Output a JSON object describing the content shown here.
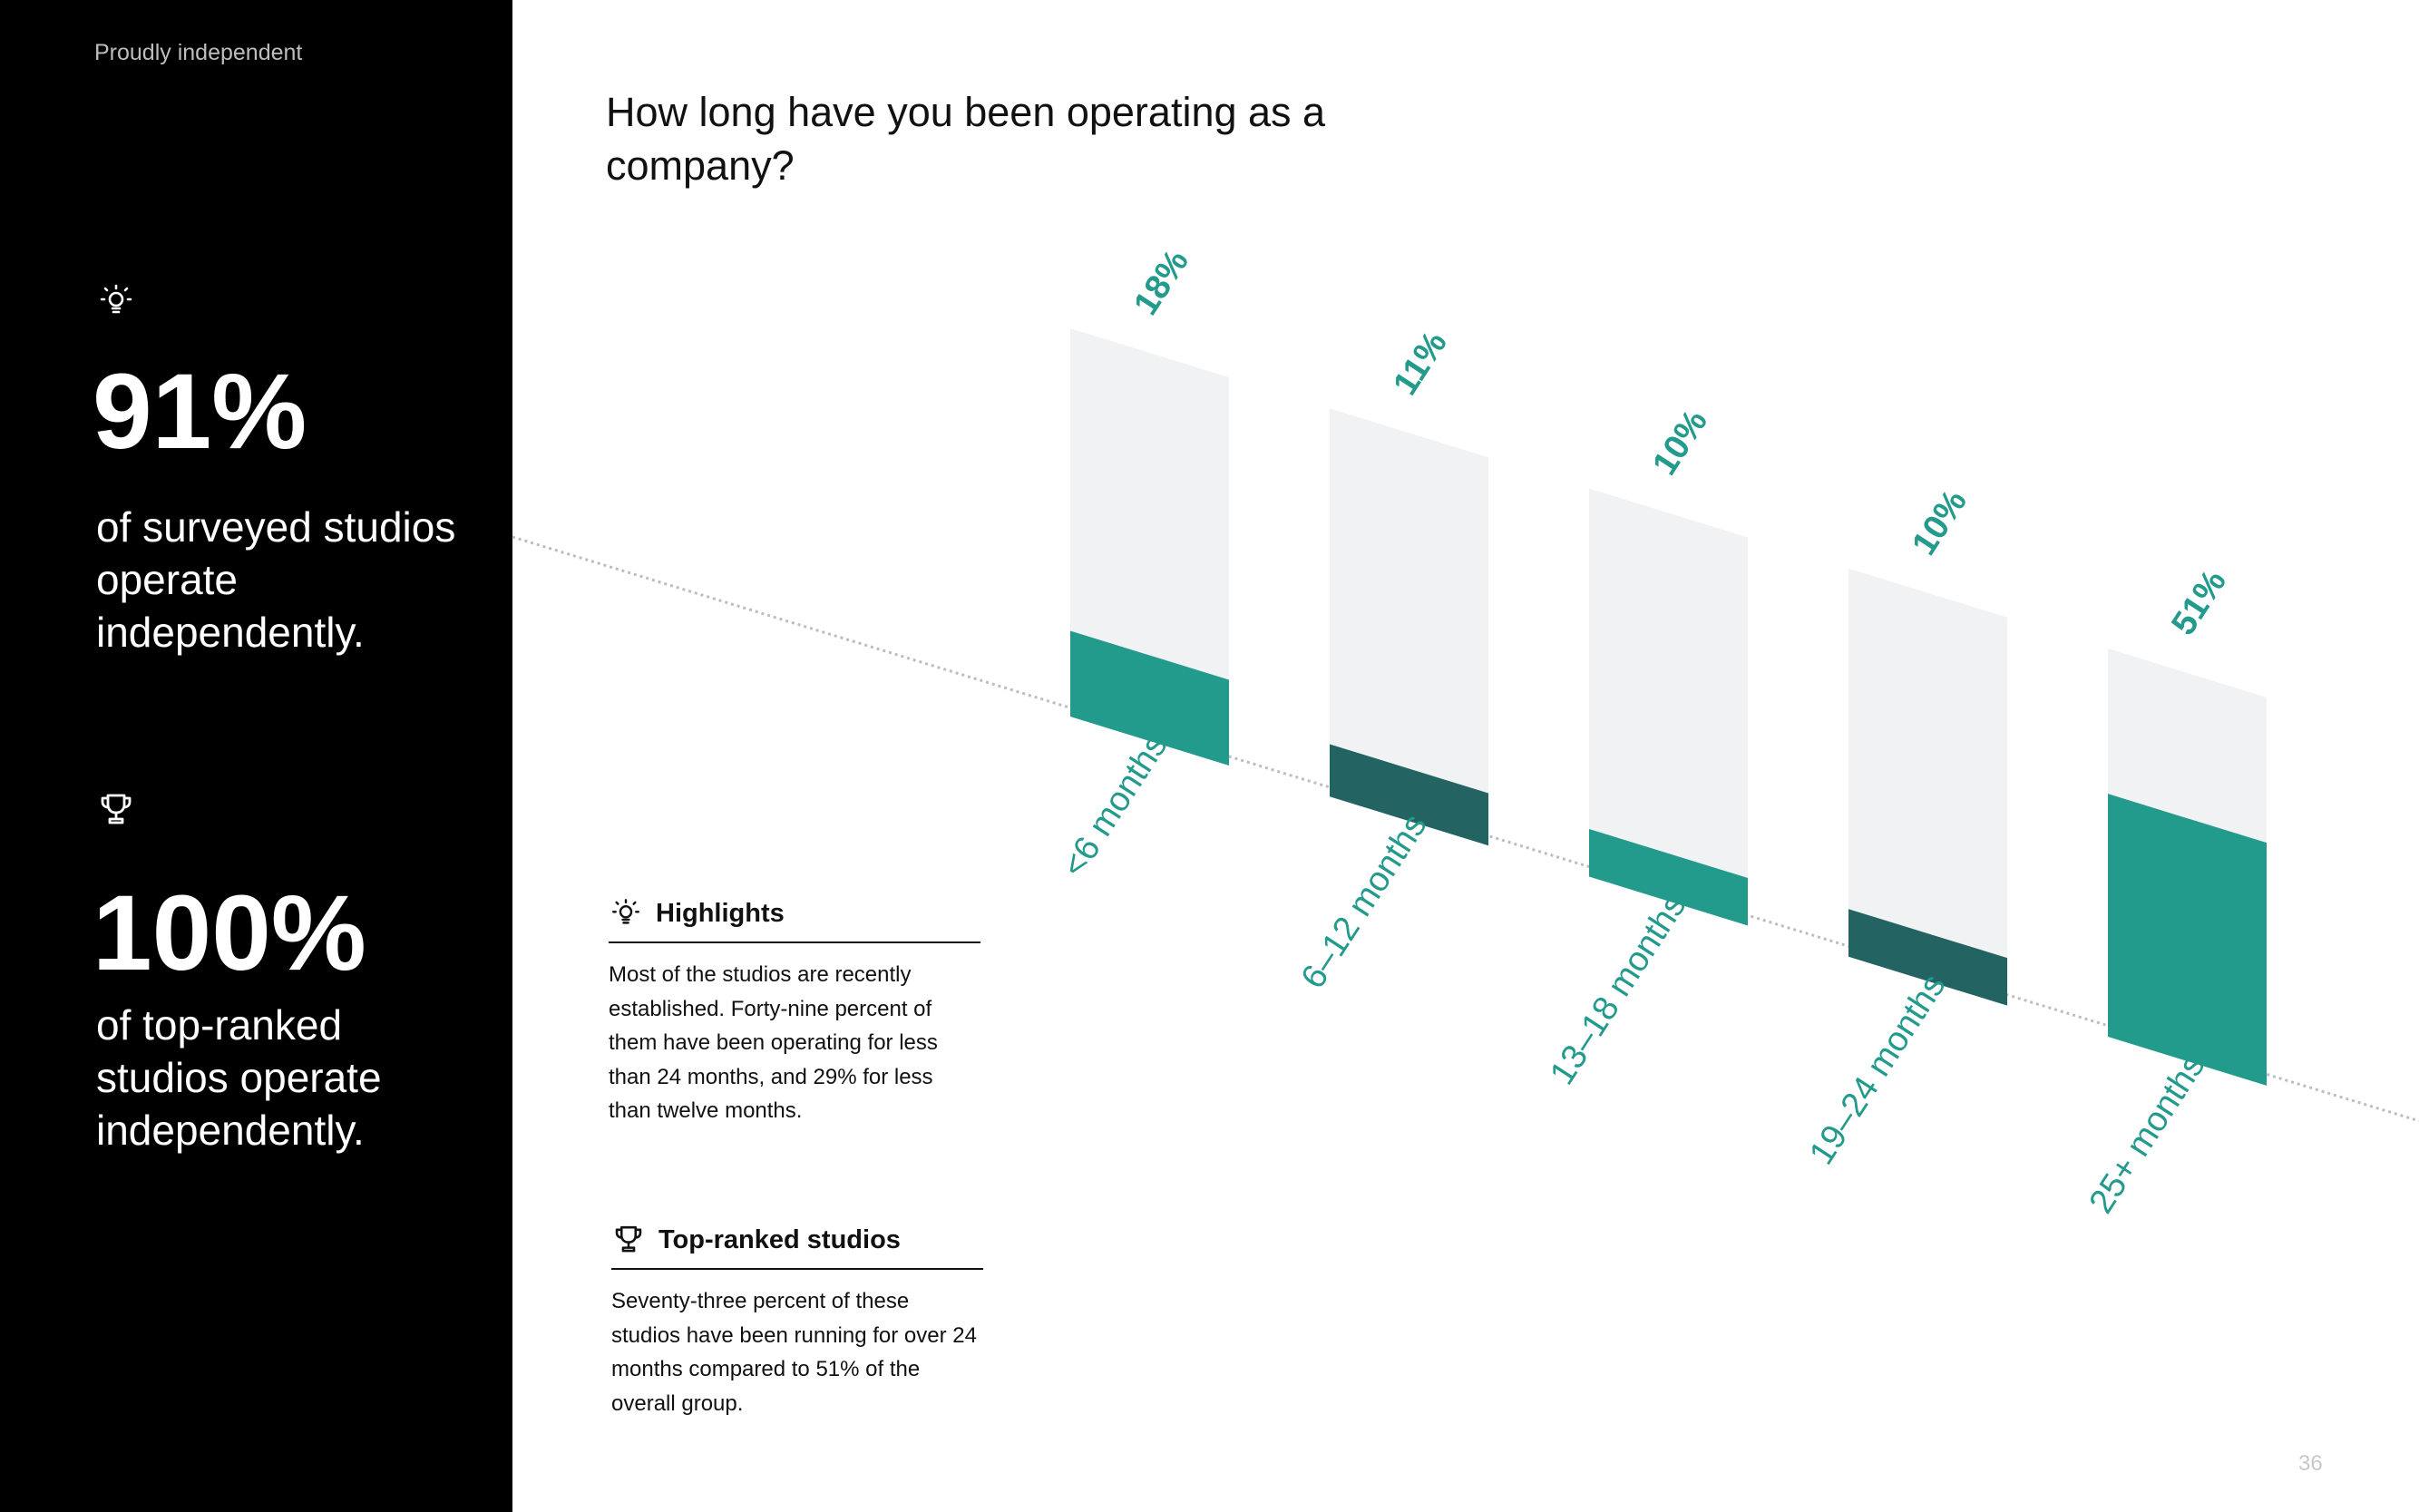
{
  "sidebar": {
    "brand": "Proudly independent",
    "stats": [
      {
        "value": "91%",
        "text": "of surveyed studios operate independently.",
        "icon": "lightbulb-icon"
      },
      {
        "value": "100%",
        "text": "of  top-ranked studios operate independently.",
        "icon": "trophy-icon"
      }
    ]
  },
  "main": {
    "title": "How long have you been operating as a company?"
  },
  "highlights": {
    "title": "Highlights",
    "icon": "lightbulb-icon",
    "body": "Most of the studios are recently established. Forty-nine percent of them have been operating for less than 24 months, and 29% for less than twelve months."
  },
  "top_ranked": {
    "title": "Top-ranked studios",
    "icon": "trophy-icon",
    "body": "Seventy-three percent of these studios have been running for over 24 months compared to 51% of the overall group."
  },
  "page_number": "36",
  "colors": {
    "teal": "#229A8C",
    "dark_teal": "#236462",
    "bar_background": "#F1F2F3",
    "label": "#229A8C"
  },
  "chart_data": {
    "type": "bar",
    "title": "How long have you been operating as a company?",
    "categories": [
      "<6 months",
      "6–12 months",
      "13–18 months",
      "19–24 months",
      "25+ months"
    ],
    "values": [
      18,
      11,
      10,
      10,
      51
    ],
    "value_labels": [
      "18%",
      "11%",
      "10%",
      "10%",
      "51%"
    ],
    "unit": "%",
    "bar_colors": [
      "#229A8C",
      "#236462",
      "#229A8C",
      "#236462",
      "#229A8C"
    ],
    "ylim": [
      0,
      100
    ],
    "grid": false,
    "legend": "none"
  }
}
